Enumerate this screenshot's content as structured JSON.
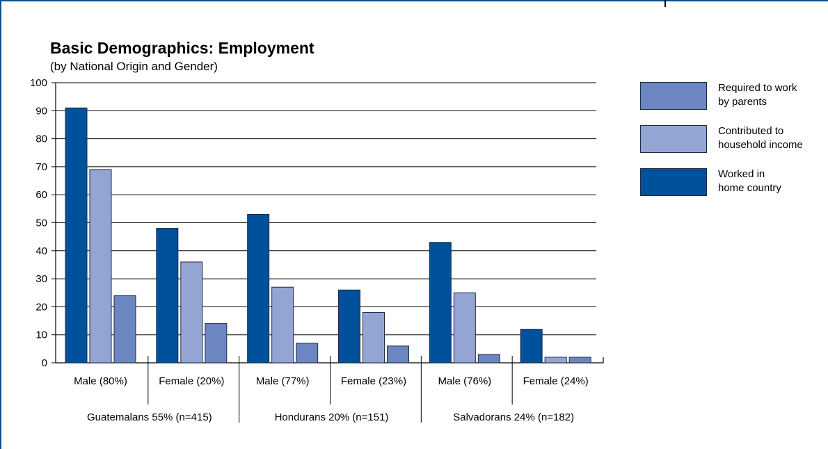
{
  "chart_data": {
    "type": "bar",
    "title": "Basic Demographics: Employment",
    "subtitle": "(by National Origin and Gender)",
    "ylim": [
      0,
      100
    ],
    "yticks": [
      0,
      10,
      20,
      30,
      40,
      50,
      60,
      70,
      80,
      90,
      100
    ],
    "grid": true,
    "legend_position": "right",
    "categories": [
      "Male (80%)",
      "Female (20%)",
      "Male (77%)",
      "Female (23%)",
      "Male (76%)",
      "Female (24%)"
    ],
    "groups": [
      {
        "label": "Guatemalans 55% (n=415)"
      },
      {
        "label": "Hondurans 20% (n=151)"
      },
      {
        "label": "Salvadorans 24% (n=182)"
      }
    ],
    "series": [
      {
        "name": "Worked in home country",
        "color": "#00519b",
        "values": [
          91,
          48,
          53,
          26,
          43,
          12
        ]
      },
      {
        "name": "Contributed to household income",
        "color": "#94a5d4",
        "values": [
          69,
          36,
          27,
          18,
          25,
          2
        ]
      },
      {
        "name": "Required to work by parents",
        "color": "#6b86c0",
        "values": [
          24,
          14,
          7,
          6,
          3,
          2
        ]
      }
    ],
    "legend": [
      {
        "line1": "Required to work",
        "line2": "by parents",
        "color": "#6b86c0"
      },
      {
        "line1": "Contributed to",
        "line2": "household income",
        "color": "#94a5d4"
      },
      {
        "line1": "Worked in",
        "line2": "home country",
        "color": "#00519b"
      }
    ]
  }
}
